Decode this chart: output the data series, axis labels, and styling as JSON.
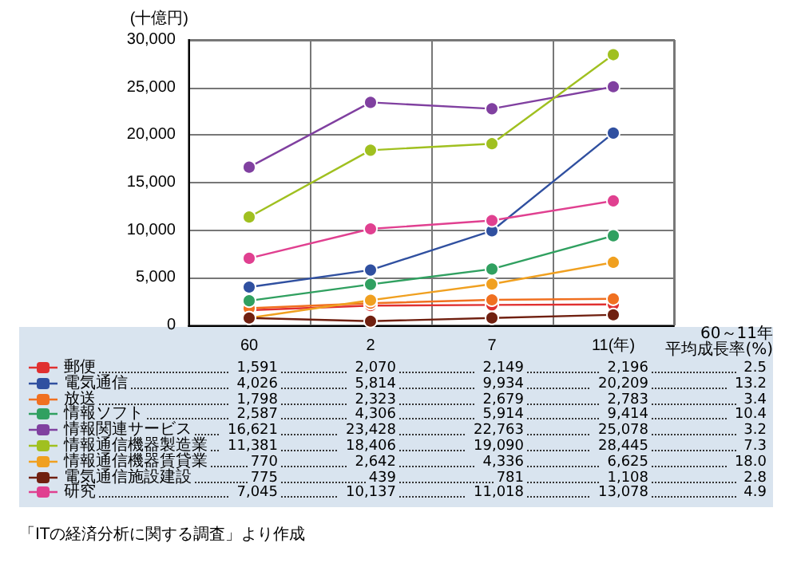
{
  "chart_data": {
    "type": "line",
    "ylabel": "(十億円)",
    "categories": [
      "60",
      "2",
      "7",
      "11(年)"
    ],
    "ylim": [
      0,
      30000
    ],
    "yticks": [
      0,
      {
        "value": 5000,
        "label": "5,000"
      },
      {
        "value": 10000,
        "label": "10,000"
      },
      {
        "value": 15000,
        "label": "15,000"
      },
      {
        "value": 20000,
        "label": "20,000"
      },
      {
        "value": 25000,
        "label": "25,000"
      },
      {
        "value": 30000,
        "label": "30,000"
      }
    ],
    "grid": true,
    "marker": "circle",
    "legend": "bottom",
    "series": [
      {
        "name": "郵便",
        "color": "#e03030",
        "values": [
          1591,
          2070,
          2149,
          2196
        ],
        "value_labels": [
          "1,591",
          "2,070",
          "2,149",
          "2,196"
        ]
      },
      {
        "name": "電気通信",
        "color": "#3050a0",
        "values": [
          4026,
          5814,
          9934,
          20209
        ],
        "value_labels": [
          "4,026",
          "5,814",
          "9,934",
          "20,209"
        ]
      },
      {
        "name": "放送",
        "color": "#f07020",
        "values": [
          1798,
          2323,
          2679,
          2783
        ],
        "value_labels": [
          "1,798",
          "2,323",
          "2,679",
          "2,783"
        ]
      },
      {
        "name": "情報ソフト",
        "color": "#30a060",
        "values": [
          2587,
          4306,
          5914,
          9414
        ],
        "value_labels": [
          "2,587",
          "4,306",
          "5,914",
          "9,414"
        ]
      },
      {
        "name": "情報関連サービス",
        "color": "#8040a0",
        "values": [
          16621,
          23428,
          22763,
          25078
        ],
        "value_labels": [
          "16,621",
          "23,428",
          "22,763",
          "25,078"
        ]
      },
      {
        "name": "情報通信機器製造業",
        "color": "#a0c020",
        "values": [
          11381,
          18406,
          19090,
          28445
        ],
        "value_labels": [
          "11,381",
          "18,406",
          "19,090",
          "28,445"
        ]
      },
      {
        "name": "情報通信機器賃貸業",
        "color": "#f0a020",
        "values": [
          770,
          2642,
          4336,
          6625
        ],
        "value_labels": [
          "770",
          "2,642",
          "4,336",
          "6,625"
        ]
      },
      {
        "name": "電気通信施設建設",
        "color": "#702010",
        "values": [
          775,
          439,
          781,
          1108
        ],
        "value_labels": [
          "775",
          "439",
          "781",
          "1,108"
        ]
      },
      {
        "name": "研究",
        "color": "#e04090",
        "values": [
          7045,
          10137,
          11018,
          13078
        ],
        "value_labels": [
          "7,045",
          "10,137",
          "11,018",
          "13,078"
        ]
      }
    ],
    "annotations": [
      "60～11年",
      "平均成長率(%)",
      "2.5",
      "13.2",
      "3.4",
      "10.4",
      "3.2",
      "7.3",
      "18.0",
      "2.8",
      "4.9",
      "「ITの経済分析に関する調査」より作成"
    ]
  }
}
